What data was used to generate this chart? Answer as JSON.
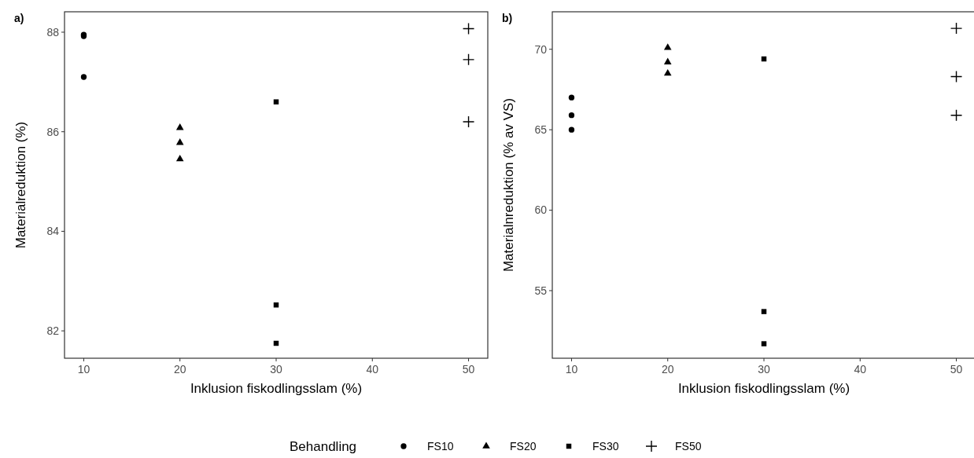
{
  "chart_data": [
    {
      "type": "scatter",
      "title": "a)",
      "xlabel": "Inklusion fiskodlingsslam (%)",
      "ylabel": "Materialreduktion (%)",
      "xlim": [
        8,
        52
      ],
      "xticks": [
        10,
        20,
        30,
        40,
        50
      ],
      "ylim": [
        81.45,
        88.41
      ],
      "yticks": [
        82,
        84,
        86,
        88
      ],
      "grid": false,
      "legend": "bottom",
      "legend_title": "Behandling",
      "series": [
        {
          "name": "FS10",
          "color": "#000000",
          "marker": "circle",
          "x": [
            10,
            10,
            10
          ],
          "values": [
            87.95,
            87.92,
            87.1
          ]
        },
        {
          "name": "FS20",
          "color": "#000000",
          "marker": "triangle",
          "x": [
            20,
            20,
            20
          ],
          "values": [
            86.08,
            85.78,
            85.45
          ]
        },
        {
          "name": "FS30",
          "color": "#000000",
          "marker": "square",
          "x": [
            30,
            30,
            30
          ],
          "values": [
            86.6,
            82.52,
            81.75
          ]
        },
        {
          "name": "FS50",
          "color": "#000000",
          "marker": "cross",
          "x": [
            50,
            50,
            50
          ],
          "values": [
            88.07,
            87.45,
            86.2
          ]
        }
      ]
    },
    {
      "type": "scatter",
      "title": "b)",
      "xlabel": "Inklusion fiskodlingsslam (%)",
      "ylabel": "Materialnreduktion (% av VS)",
      "xlim": [
        8,
        52
      ],
      "xticks": [
        10,
        20,
        30,
        40,
        50
      ],
      "ylim": [
        50.8,
        72.33
      ],
      "yticks": [
        55,
        60,
        65,
        70
      ],
      "grid": false,
      "series": [
        {
          "color": "#000000",
          "marker": "circle",
          "x": [
            10,
            10,
            10
          ],
          "values": [
            67,
            65.9,
            65
          ]
        },
        {
          "color": "#000000",
          "marker": "triangle",
          "x": [
            20,
            20,
            20
          ],
          "values": [
            70.1,
            69.2,
            68.5
          ]
        },
        {
          "color": "#000000",
          "marker": "square",
          "x": [
            30,
            30,
            30
          ],
          "values": [
            69.4,
            53.7,
            51.7
          ]
        },
        {
          "color": "#000000",
          "marker": "cross",
          "x": [
            50,
            50,
            50
          ],
          "values": [
            71.3,
            68.3,
            65.9
          ]
        }
      ]
    }
  ]
}
